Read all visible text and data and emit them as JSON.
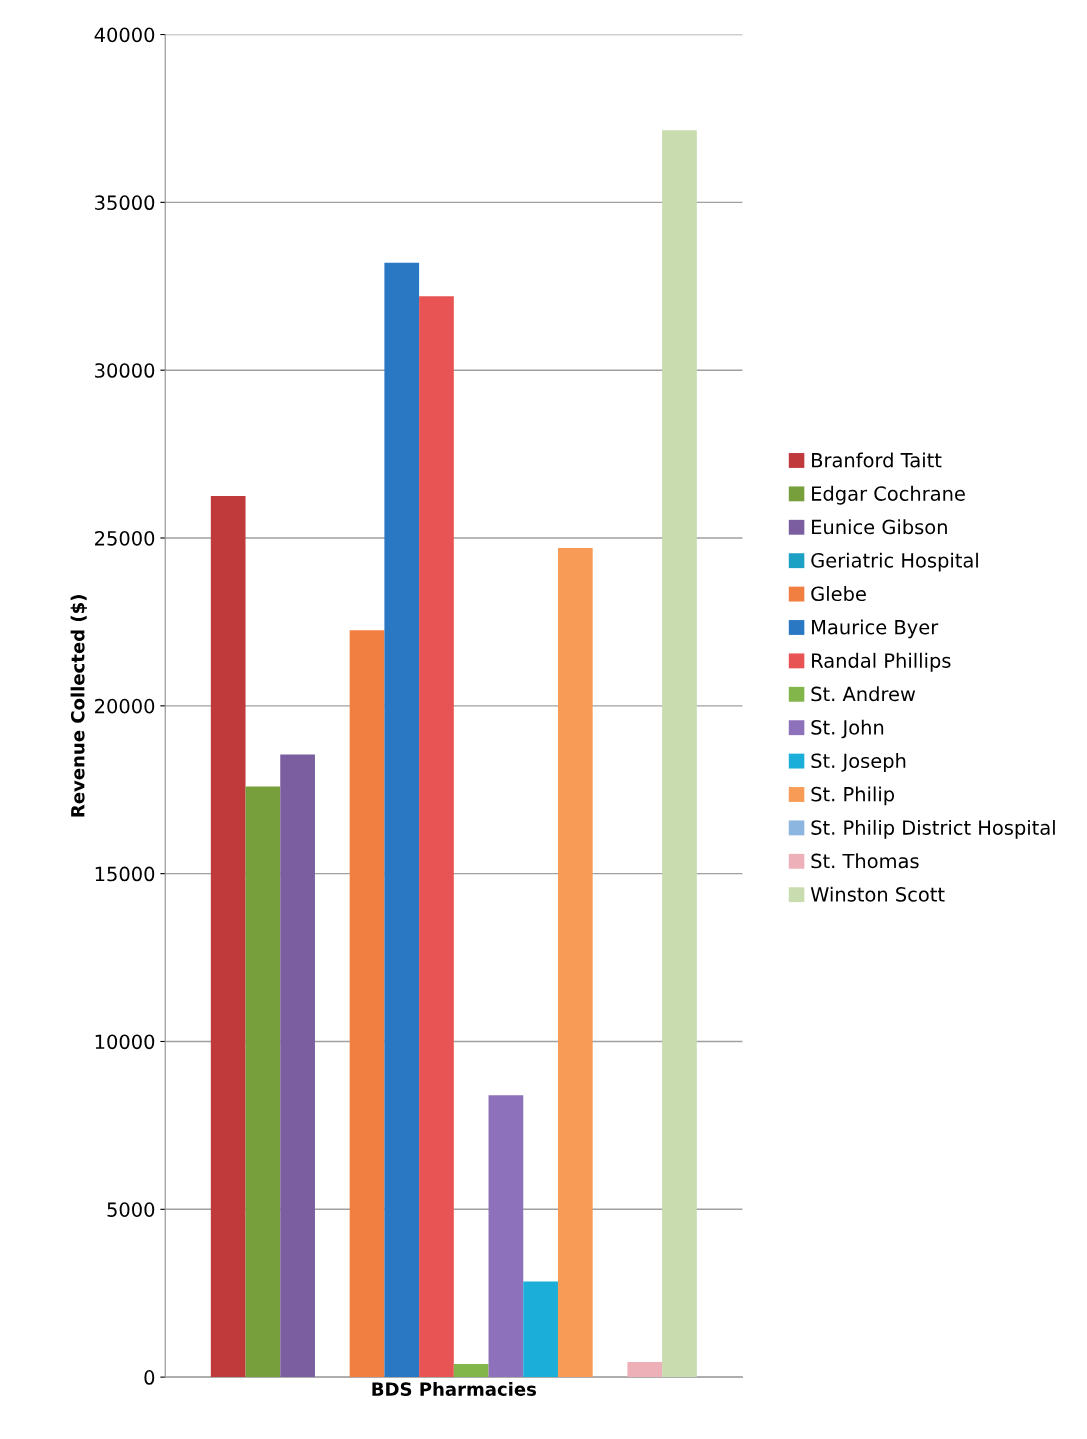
{
  "chart_data": {
    "type": "bar",
    "ylabel": "Revenue Collected ($)",
    "categories": [
      "BDS Pharmacies"
    ],
    "series": [
      {
        "name": "Branford Taitt",
        "color": "#c0393b",
        "values": [
          26250
        ]
      },
      {
        "name": "Edgar Cochrane",
        "color": "#77a03c",
        "values": [
          17600
        ]
      },
      {
        "name": "Eunice Gibson",
        "color": "#7b5ea0",
        "values": [
          18550
        ]
      },
      {
        "name": "Geriatric Hospital",
        "color": "#1ca0c4",
        "values": [
          0
        ]
      },
      {
        "name": "Glebe",
        "color": "#f07f41",
        "values": [
          22250
        ]
      },
      {
        "name": "Maurice Byer",
        "color": "#2a78c4",
        "values": [
          33200
        ]
      },
      {
        "name": "Randal Phillips",
        "color": "#e85454",
        "values": [
          32200
        ]
      },
      {
        "name": "St. Andrew",
        "color": "#82b54a",
        "values": [
          390
        ]
      },
      {
        "name": "St. John",
        "color": "#8d71bb",
        "values": [
          8400
        ]
      },
      {
        "name": "St. Joseph",
        "color": "#1aaed8",
        "values": [
          2850
        ]
      },
      {
        "name": "St. Philip",
        "color": "#f89b56",
        "values": [
          24700
        ]
      },
      {
        "name": "St. Philip District Hospital",
        "color": "#8cb5e0",
        "values": [
          0
        ]
      },
      {
        "name": "St. Thomas",
        "color": "#eeb0b8",
        "values": [
          450
        ]
      },
      {
        "name": "Winston Scott",
        "color": "#c9dcb0",
        "values": [
          37150
        ]
      }
    ],
    "ylim": [
      0,
      40000
    ],
    "yticks": [
      0,
      5000,
      10000,
      15000,
      20000,
      25000,
      30000,
      35000,
      40000
    ],
    "grid": "y",
    "legend": "right"
  }
}
